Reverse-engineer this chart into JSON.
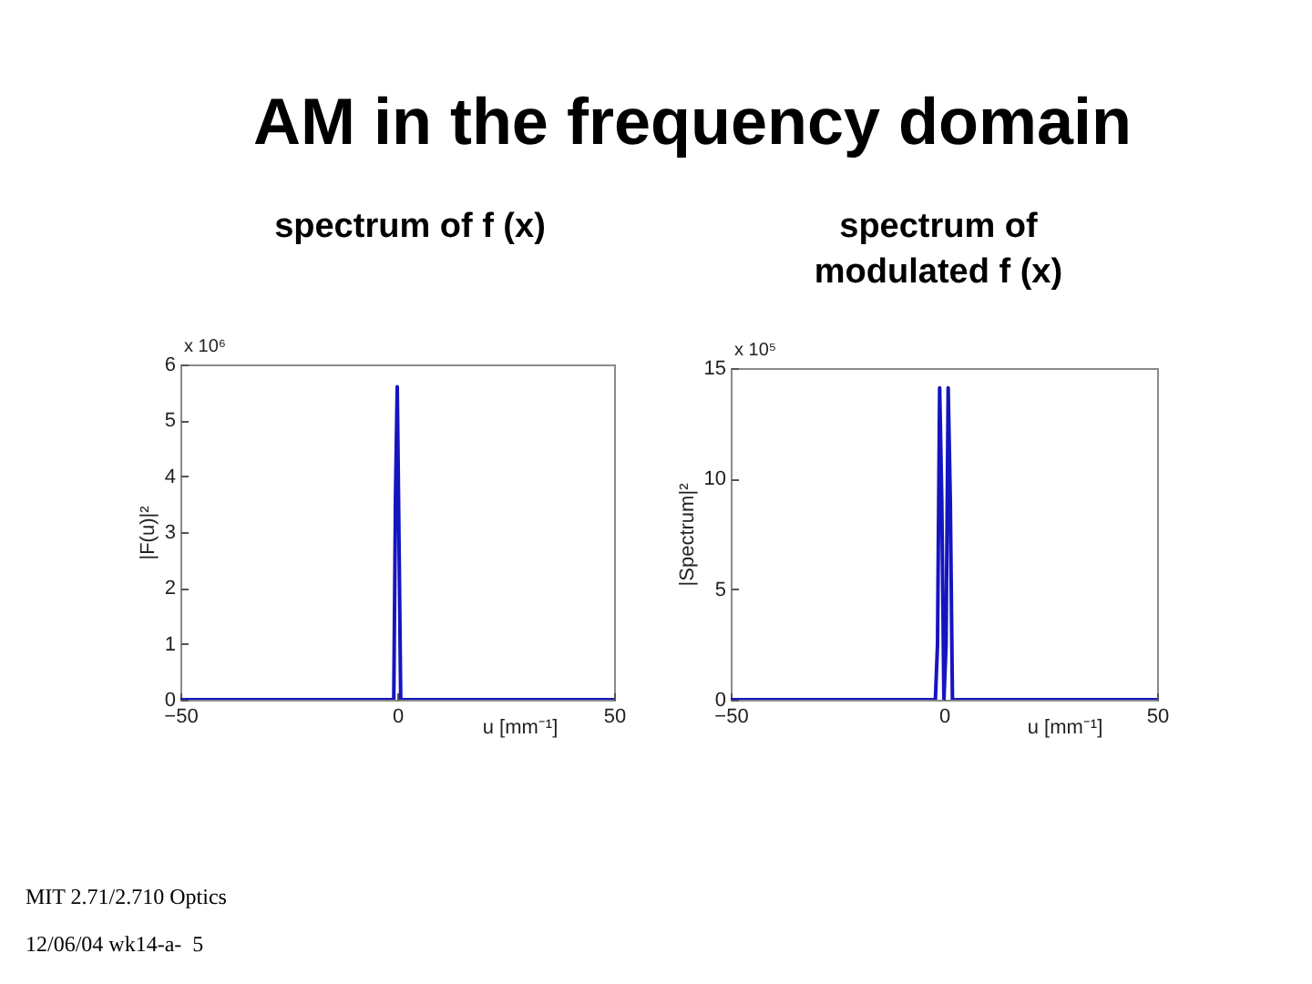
{
  "chart_data": [
    {
      "type": "line",
      "title": "AM in the frequency domain",
      "subtitle": "spectrum of f (x)",
      "xlabel": "u [mm⁻¹]",
      "ylabel": "|F(u)|²",
      "annotations": [
        "x 10⁶",
        "MIT 2.71/2.710 Optics",
        "12/06/04 wk14-a-  5"
      ],
      "x": [
        -50,
        -0.8,
        -0.4,
        0,
        0.4,
        0.8,
        50
      ],
      "series": [
        {
          "color": "#1515c0",
          "values": [
            0,
            0,
            3.65,
            5.6,
            2.9,
            0,
            0
          ]
        }
      ],
      "xlim": [
        -50,
        50
      ],
      "xticks": [
        -50,
        0,
        50
      ],
      "ylim": [
        0,
        6
      ],
      "yticks": [
        0,
        1,
        2,
        3,
        4,
        5,
        6
      ]
    },
    {
      "type": "line",
      "subtitle": "spectrum of modulated f (x)",
      "xlabel": "u [mm⁻¹]",
      "ylabel": "|Spectrum|²",
      "annotations": [
        "x 10⁵"
      ],
      "x": [
        -50,
        -2,
        -1.5,
        -1,
        -0.5,
        0,
        0.5,
        1,
        1.5,
        2,
        50
      ],
      "series": [
        {
          "color": "#1515c0",
          "values": [
            0,
            0,
            2.5,
            14.1,
            9,
            0,
            2.5,
            14.1,
            9,
            0,
            0
          ]
        }
      ],
      "xlim": [
        -50,
        50
      ],
      "xticks": [
        -50,
        0,
        50
      ],
      "ylim": [
        0,
        15
      ],
      "yticks": [
        0,
        5,
        10,
        15
      ]
    }
  ]
}
